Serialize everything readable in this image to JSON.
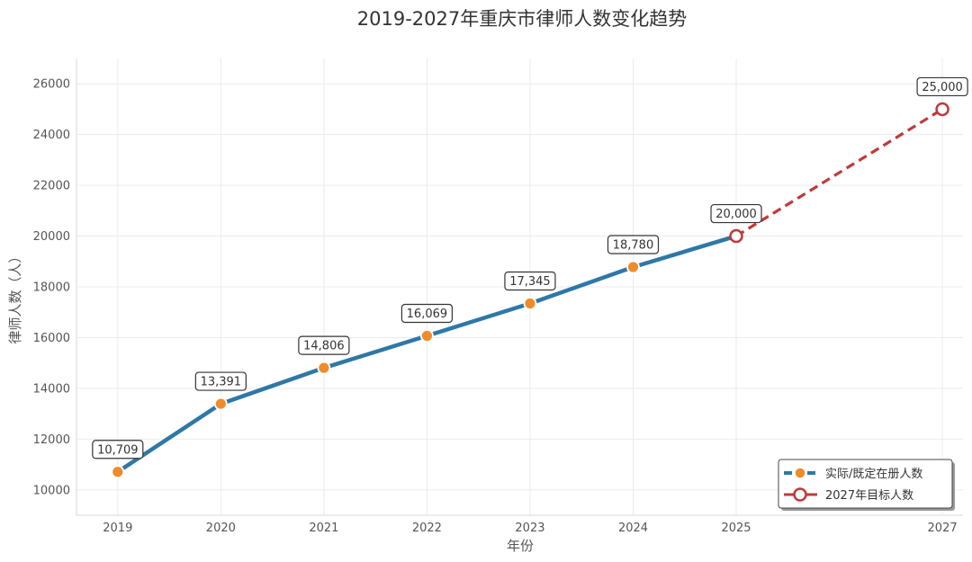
{
  "chart_data": {
    "type": "line",
    "title": "2019-2027年重庆市律师人数变化趋势",
    "xlabel": "年份",
    "ylabel": "律师人数（人）",
    "xticks": [
      2019,
      2020,
      2021,
      2022,
      2023,
      2024,
      2025,
      2027
    ],
    "yticks": [
      10000,
      12000,
      14000,
      16000,
      18000,
      20000,
      22000,
      24000,
      26000
    ],
    "xlim": [
      2018.6,
      2027.2
    ],
    "ylim": [
      9000,
      27000
    ],
    "grid": true,
    "legend_position": "bottom-right",
    "series": [
      {
        "name": "实际/既定在册人数",
        "style": "solid-line-filled-markers",
        "color": "#2e78a6",
        "marker_color": "#ef8c2a",
        "x": [
          2019,
          2020,
          2021,
          2022,
          2023,
          2024
        ],
        "y": [
          10709,
          13391,
          14806,
          16069,
          17345,
          18780
        ],
        "labels": [
          "10,709",
          "13,391",
          "14,806",
          "16,069",
          "17,345",
          "18,780"
        ]
      },
      {
        "name": "2027年目标人数",
        "style": "dashed-line-open-markers",
        "color": "#c0393b",
        "x": [
          2025,
          2027
        ],
        "y": [
          20000,
          25000
        ],
        "labels": [
          "20,000",
          "25,000"
        ]
      }
    ],
    "connector": {
      "x": [
        2024,
        2025
      ],
      "y": [
        18780,
        20000
      ],
      "color": "#2e78a6"
    }
  }
}
